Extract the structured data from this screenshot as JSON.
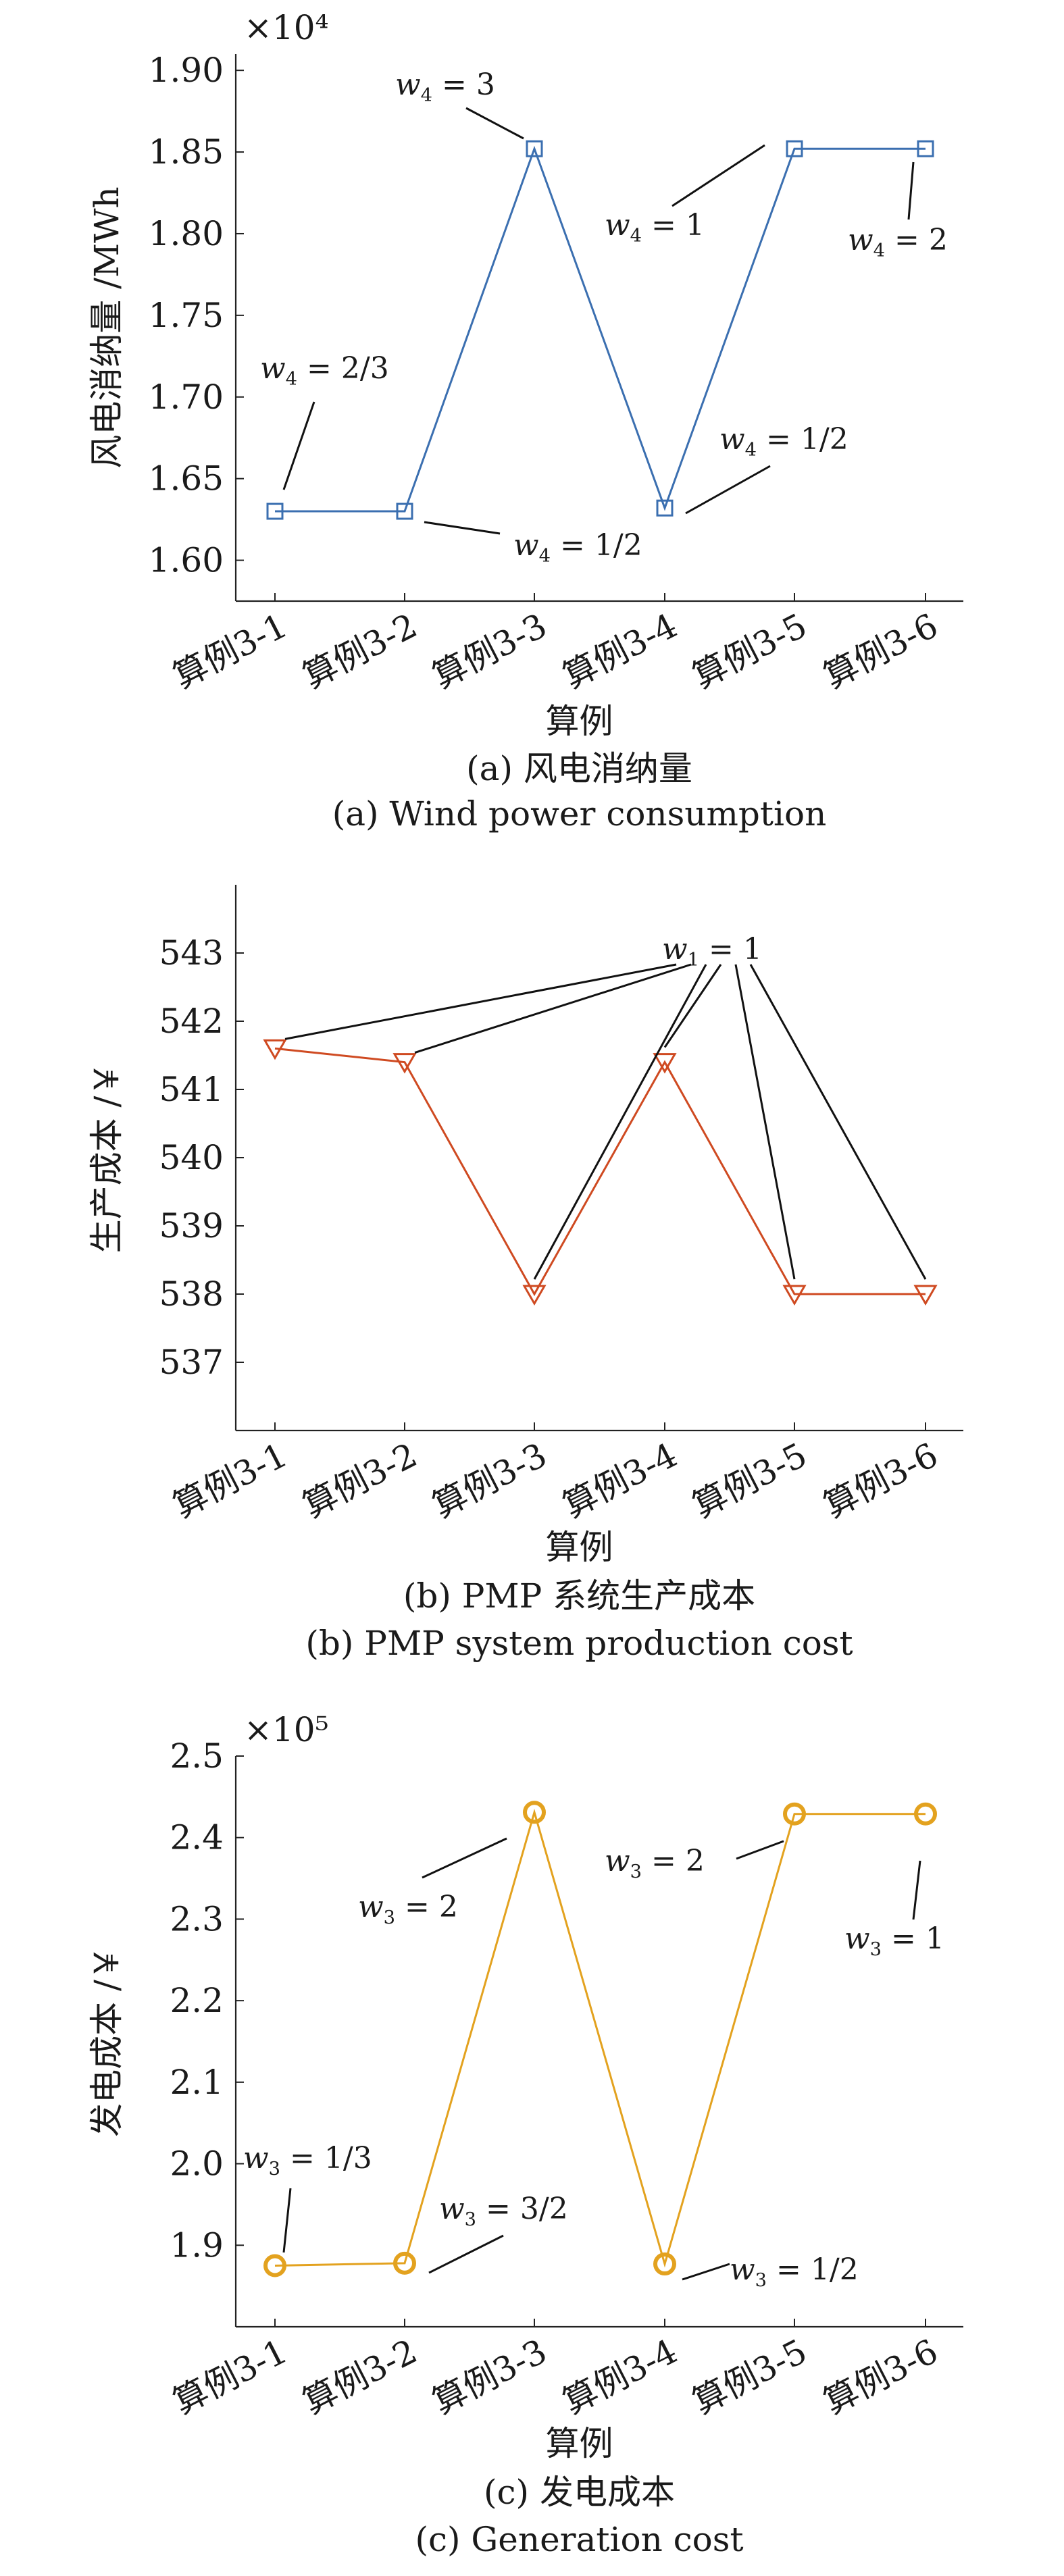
{
  "chart_data": [
    {
      "type": "line",
      "categories": [
        "算例3-1",
        "算例3-2",
        "算例3-3",
        "算例3-4",
        "算例3-5",
        "算例3-6"
      ],
      "values": [
        1.63,
        1.63,
        1.852,
        1.632,
        1.852,
        1.852
      ],
      "ylim": [
        1.575,
        1.91
      ],
      "yticks": [
        "1.60",
        "1.65",
        "1.70",
        "1.75",
        "1.80",
        "1.85",
        "1.90"
      ],
      "yscale_label": "×10⁴",
      "ylabel": "风电消纳量 /MWh",
      "xlabel": "算例",
      "caption_cn": "(a) 风电消纳量",
      "caption_en": "(a) Wind power consumption",
      "color": "#3b6fb0",
      "marker": "square",
      "annotations": [
        {
          "text": "w4 = 2/3",
          "x": 0,
          "y": 1.63
        },
        {
          "text": "w4 = 1/2",
          "x": 1,
          "y": 1.63
        },
        {
          "text": "w4 = 3",
          "x": 2,
          "y": 1.852
        },
        {
          "text": "w4 = 1/2",
          "x": 3,
          "y": 1.632
        },
        {
          "text": "w4 = 1",
          "x": 4,
          "y": 1.852
        },
        {
          "text": "w4 = 2",
          "x": 5,
          "y": 1.852
        }
      ]
    },
    {
      "type": "line",
      "categories": [
        "算例3-1",
        "算例3-2",
        "算例3-3",
        "算例3-4",
        "算例3-5",
        "算例3-6"
      ],
      "values": [
        541.6,
        541.4,
        538.0,
        541.4,
        538.0,
        538.0
      ],
      "ylim": [
        536,
        544
      ],
      "yticks": [
        "537",
        "538",
        "539",
        "540",
        "541",
        "542",
        "543"
      ],
      "ylabel": "生产成本 /￥",
      "xlabel": "算例",
      "caption_cn": "(b) PMP 系统生产成本",
      "caption_en": "(b) PMP system production cost",
      "color": "#cf4a21",
      "marker": "triangle-down",
      "annotations": [
        {
          "text": "w1 = 1",
          "x": [
            0,
            1,
            2,
            3,
            4,
            5
          ]
        }
      ]
    },
    {
      "type": "line",
      "categories": [
        "算例3-1",
        "算例3-2",
        "算例3-3",
        "算例3-4",
        "算例3-5",
        "算例3-6"
      ],
      "values": [
        1.875,
        1.878,
        2.431,
        1.877,
        2.429,
        2.429
      ],
      "ylim": [
        1.8,
        2.5
      ],
      "yticks": [
        "1.9",
        "2.0",
        "2.1",
        "2.2",
        "2.3",
        "2.4",
        "2.5"
      ],
      "yscale_label": "×10⁵",
      "ylabel": "发电成本 /￥",
      "xlabel": "算例",
      "caption_cn": "(c) 发电成本",
      "caption_en": "(c) Generation cost",
      "color": "#e3a21f",
      "marker": "circle",
      "annotations": [
        {
          "text": "w3 = 1/3",
          "x": 0,
          "y": 1.875
        },
        {
          "text": "w3 = 3/2",
          "x": 1,
          "y": 1.878
        },
        {
          "text": "w3 = 2",
          "x": 2,
          "y": 2.431
        },
        {
          "text": "w3 = 1/2",
          "x": 3,
          "y": 1.877
        },
        {
          "text": "w3 = 2",
          "x": 4,
          "y": 2.429
        },
        {
          "text": "w3 = 1",
          "x": 5,
          "y": 2.429
        }
      ]
    }
  ]
}
